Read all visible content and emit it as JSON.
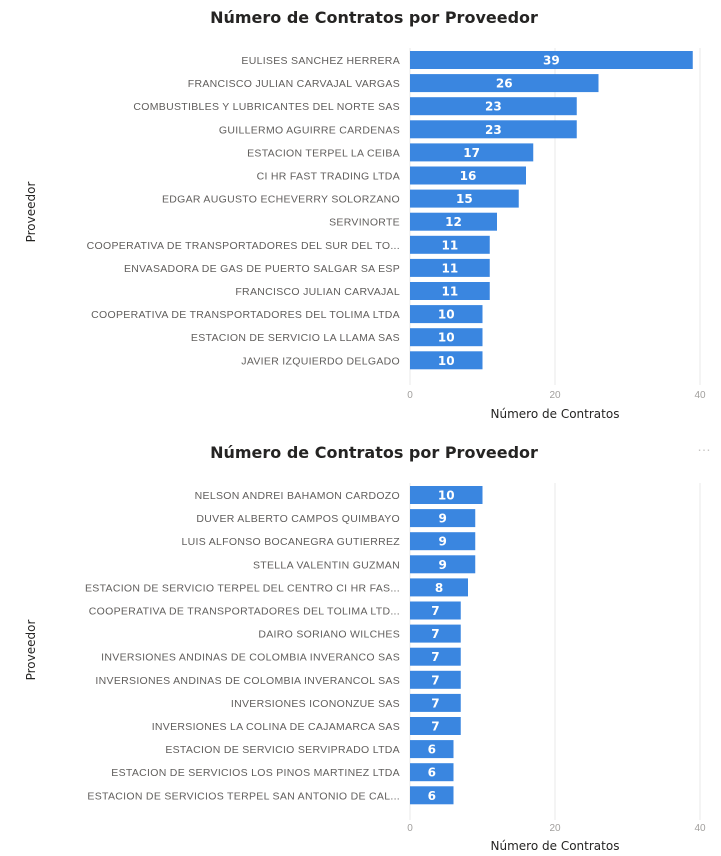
{
  "colors": {
    "bar": "#3a86e0",
    "value_label": "#ffffff"
  },
  "chart_data": [
    {
      "type": "bar",
      "orientation": "horizontal",
      "title": "Número de Contratos por Proveedor",
      "xlabel": "Número de Contratos",
      "ylabel": "Proveedor",
      "xlim": [
        0,
        40
      ],
      "xticks": [
        0,
        20,
        40
      ],
      "xtick_labels": [
        "0",
        "20",
        "40"
      ],
      "categories": [
        "EULISES SANCHEZ HERRERA",
        "FRANCISCO JULIAN CARVAJAL VARGAS",
        "COMBUSTIBLES Y LUBRICANTES DEL NORTE SAS",
        "GUILLERMO AGUIRRE CARDENAS",
        "ESTACION TERPEL LA CEIBA",
        "CI HR FAST TRADING LTDA",
        "EDGAR AUGUSTO ECHEVERRY SOLORZANO",
        "SERVINORTE",
        "COOPERATIVA DE TRANSPORTADORES DEL SUR DEL TO...",
        "ENVASADORA DE GAS DE PUERTO SALGAR SA ESP",
        "FRANCISCO JULIAN CARVAJAL",
        "COOPERATIVA DE TRANSPORTADORES DEL TOLIMA LTDA",
        "ESTACION DE SERVICIO LA LLAMA SAS",
        "JAVIER IZQUIERDO DELGADO"
      ],
      "values": [
        39,
        26,
        23,
        23,
        17,
        16,
        15,
        12,
        11,
        11,
        11,
        10,
        10,
        10
      ],
      "value_labels": [
        "39",
        "26",
        "23",
        "23",
        "17",
        "16",
        "15",
        "12",
        "11",
        "11",
        "11",
        "10",
        "10",
        "10"
      ],
      "grid": true
    },
    {
      "type": "bar",
      "orientation": "horizontal",
      "title": "Número de Contratos por Proveedor",
      "xlabel": "Número de Contratos",
      "ylabel": "Proveedor",
      "xlim": [
        0,
        40
      ],
      "xticks": [
        0,
        20,
        40
      ],
      "xtick_labels": [
        "0",
        "20",
        "40"
      ],
      "categories": [
        "NELSON ANDREI BAHAMON CARDOZO",
        "DUVER ALBERTO CAMPOS QUIMBAYO",
        "LUIS ALFONSO BOCANEGRA GUTIERREZ",
        "STELLA VALENTIN GUZMAN",
        "ESTACION DE SERVICIO TERPEL DEL CENTRO CI HR FAS...",
        "COOPERATIVA DE TRANSPORTADORES DEL TOLIMA LTD...",
        "DAIRO SORIANO WILCHES",
        "INVERSIONES ANDINAS DE COLOMBIA INVERANCO SAS",
        "INVERSIONES ANDINAS DE COLOMBIA INVERANCOL SAS",
        "INVERSIONES ICONONZUE SAS",
        "INVERSIONES LA COLINA DE CAJAMARCA SAS",
        "ESTACION DE SERVICIO SERVIPRADO LTDA",
        "ESTACION DE SERVICIOS LOS PINOS MARTINEZ LTDA",
        "ESTACION DE SERVICIOS TERPEL SAN ANTONIO DE CAL..."
      ],
      "values": [
        10,
        9,
        9,
        9,
        8,
        7,
        7,
        7,
        7,
        7,
        7,
        6,
        6,
        6
      ],
      "value_labels": [
        "10",
        "9",
        "9",
        "9",
        "8",
        "7",
        "7",
        "7",
        "7",
        "7",
        "7",
        "6",
        "6",
        "6"
      ],
      "grid": true
    }
  ]
}
